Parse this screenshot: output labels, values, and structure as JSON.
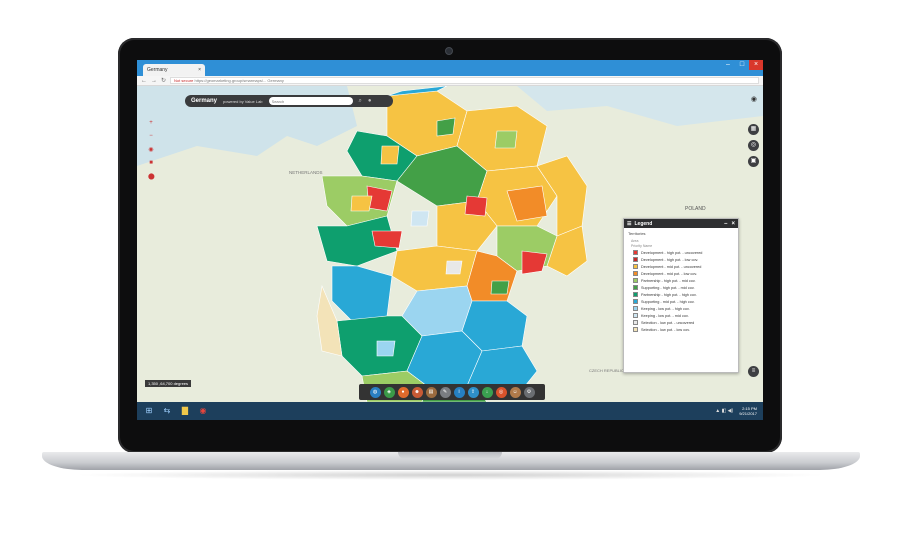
{
  "browser": {
    "tab_title": "Germany",
    "tab_close": "×",
    "win_min": "–",
    "win_max": "□",
    "win_close": "×",
    "nav_back": "←",
    "nav_forward": "→",
    "nav_reload": "↻",
    "security_label": "Not secure",
    "url": "https://geomarketing.group/smarmaps/... Germany"
  },
  "header": {
    "title": "Germany",
    "powered_by": "powered by Value Lab",
    "search_placeholder": "Search",
    "search_icon": "search-icon",
    "menu_icon": "dots-icon"
  },
  "map": {
    "labels": {
      "netherlands": "NETHERLANDS",
      "poland": "POLAND",
      "czech": "CZECH REPUBLIC"
    },
    "scale_text": "1,350 ,64,700 degrees"
  },
  "left_tools": [
    "+",
    "−",
    "◉",
    "■",
    "⬤"
  ],
  "right_tools": [
    "▦",
    "◎",
    "▣"
  ],
  "legend": {
    "title": "Legend",
    "subtitle": "Territories",
    "field_label": "Area",
    "field_sub": "Priority Name",
    "min_icon": "minus-icon",
    "close_icon": "close-icon",
    "items": [
      {
        "label": "Development - high pot. - uncovered",
        "color": "#e53935"
      },
      {
        "label": "Development - high pot. - low cov.",
        "color": "#c62828"
      },
      {
        "label": "Development - mid pot. - uncovered",
        "color": "#f6c343"
      },
      {
        "label": "Development - mid pot. - low cov.",
        "color": "#f28c28"
      },
      {
        "label": "Partnership - high pot. - mid cov.",
        "color": "#9ccc65"
      },
      {
        "label": "Supporting - high pot. - mid cov.",
        "color": "#43a047"
      },
      {
        "label": "Partnership - high pot. - high cov.",
        "color": "#0e9f6e"
      },
      {
        "label": "Supporting - mid pot. - high cov.",
        "color": "#29a8d6"
      },
      {
        "label": "Keeping - low pot. - high cov.",
        "color": "#9bd5f0"
      },
      {
        "label": "Keeping - low pot. - mid cov.",
        "color": "#cfe6f2"
      },
      {
        "label": "Selection - low pot. - uncovered",
        "color": "#e8e8e8"
      },
      {
        "label": "Selection - low pot. - low cov.",
        "color": "#f3e3b8"
      }
    ]
  },
  "bottom_toolbar": {
    "buttons": [
      {
        "icon": "globe-icon",
        "glyph": "◍",
        "color": "#2a7fc1"
      },
      {
        "icon": "layers-icon",
        "glyph": "◈",
        "color": "#3a9a48"
      },
      {
        "icon": "location-icon",
        "glyph": "●",
        "color": "#e06a2c"
      },
      {
        "icon": "person-icon",
        "glyph": "☻",
        "color": "#c85a35"
      },
      {
        "icon": "chart-icon",
        "glyph": "▤",
        "color": "#9b6b3f"
      },
      {
        "icon": "edit-icon",
        "glyph": "✎",
        "color": "#7a7d82"
      },
      {
        "icon": "info-icon",
        "glyph": "i",
        "color": "#2680c2"
      },
      {
        "icon": "share-icon",
        "glyph": "⇪",
        "color": "#2f90c8"
      },
      {
        "icon": "download-icon",
        "glyph": "↓",
        "color": "#3aa050"
      },
      {
        "icon": "target-icon",
        "glyph": "◎",
        "color": "#d9532b"
      },
      {
        "icon": "user-icon",
        "glyph": "☺",
        "color": "#b07a4a"
      },
      {
        "icon": "settings-icon",
        "glyph": "⚙",
        "color": "#6b6e72"
      }
    ]
  },
  "taskbar": {
    "start_icon": "windows-icon",
    "clock_time": "2:15 PM",
    "clock_date": "9/21/2017"
  },
  "accent_colors": {
    "browser": "#2f8fd6",
    "taskbar": "#1d3f5c",
    "toolbar": "#333333"
  }
}
